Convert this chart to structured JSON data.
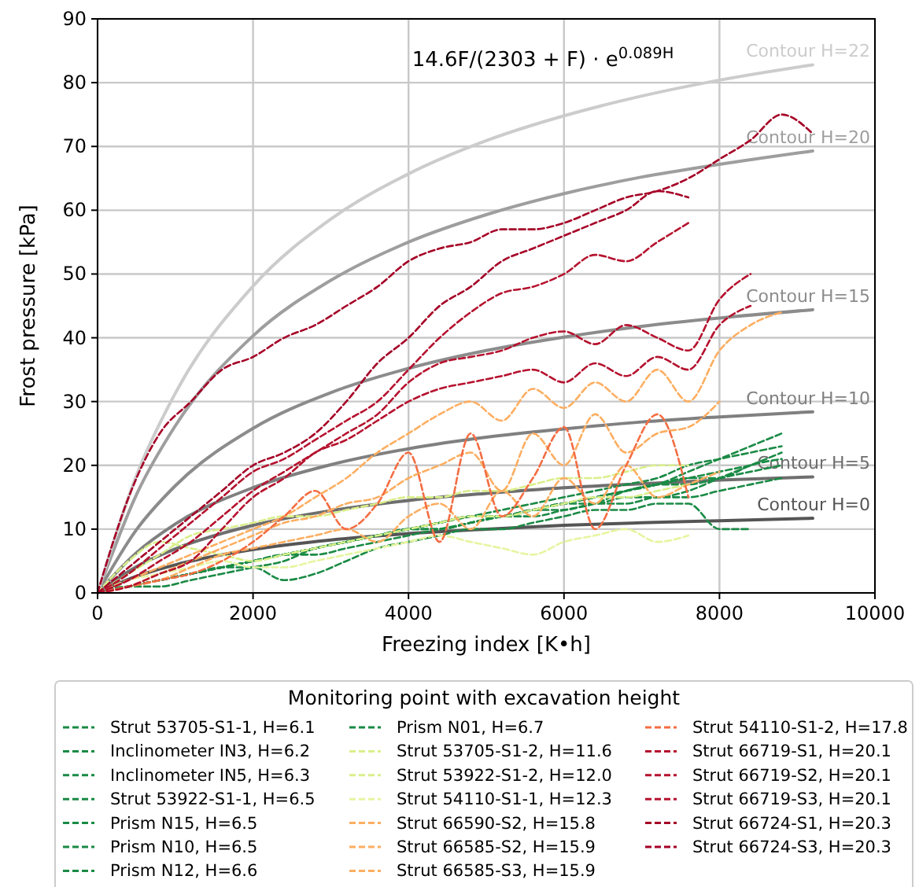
{
  "chart_data": {
    "type": "line",
    "xlabel": "Freezing index [K•h]",
    "ylabel": "Frost pressure [kPa]",
    "legend_title": "Monitoring point with excavation height",
    "legend": "bottom",
    "grid": true,
    "line_style": "dashed",
    "marker": "none",
    "annotations": [
      "14.6F/(2303 + F) · e$^{0.089H}$"
    ],
    "xlim": [
      0,
      10000
    ],
    "xticks": [
      0,
      2000,
      4000,
      6000,
      8000,
      10000
    ],
    "ylim": [
      0,
      90
    ],
    "yticks": [
      0,
      10,
      20,
      30,
      40,
      50,
      60,
      70,
      80,
      90
    ],
    "x": [
      0,
      400,
      800,
      1200,
      1600,
      2000,
      2400,
      2800,
      3200,
      3600,
      4000,
      4400,
      4800,
      5200,
      5600,
      6000,
      6400,
      6800,
      7200,
      7600,
      8000,
      8400,
      8800,
      9200
    ],
    "series": [
      {
        "name": "Strut 53705-S1-1, H=6.1",
        "color": "#1a8a45",
        "values": [
          0,
          1,
          2,
          3,
          4,
          5,
          6,
          7,
          8,
          9,
          10,
          11,
          12,
          12,
          13,
          14,
          15,
          16,
          17,
          18,
          18,
          20,
          21,
          null
        ]
      },
      {
        "name": "Inclinometer IN3, H=6.2",
        "color": "#1a8a45",
        "values": [
          0,
          1,
          2,
          3,
          4,
          5,
          6,
          7,
          8,
          9,
          10,
          10,
          11,
          12,
          13,
          14,
          15,
          16,
          17,
          19,
          21,
          23,
          25,
          null
        ]
      },
      {
        "name": "Inclinometer IN5, H=6.3",
        "color": "#1a8a45",
        "values": [
          0,
          1,
          2,
          3,
          4,
          5,
          6,
          6,
          7,
          8,
          9,
          10,
          11,
          12,
          12,
          13,
          14,
          16,
          17,
          18,
          19,
          20,
          null,
          null
        ]
      },
      {
        "name": "Strut 53922-S1-1, H=6.5",
        "color": "#1a8a45",
        "values": [
          0,
          1,
          1,
          2,
          3,
          4,
          5,
          7,
          8,
          9,
          10,
          11,
          12,
          13,
          14,
          15,
          16,
          17,
          18,
          20,
          21,
          22,
          23,
          null
        ]
      },
      {
        "name": "Prism N15, H=6.5",
        "color": "#1a8a45",
        "values": [
          0,
          1,
          2,
          3,
          4,
          5,
          6,
          7,
          8,
          9,
          10,
          11,
          12,
          12,
          13,
          14,
          14,
          15,
          15,
          16,
          18,
          20,
          22,
          null
        ]
      },
      {
        "name": "Prism N10, H=6.5",
        "color": "#1a8a45",
        "values": [
          0,
          1,
          2,
          3,
          4,
          4,
          2,
          3,
          5,
          7,
          8,
          9,
          10,
          10,
          11,
          12,
          13,
          13,
          14,
          14,
          10,
          10,
          null,
          null
        ]
      },
      {
        "name": "Prism N12, H=6.6",
        "color": "#1a8a45",
        "values": [
          0,
          1,
          2,
          3,
          4,
          5,
          6,
          7,
          8,
          9,
          10,
          11,
          12,
          12,
          13,
          13,
          14,
          14,
          15,
          15,
          16,
          17,
          18,
          null
        ]
      },
      {
        "name": "Prism N01, H=6.7",
        "color": "#1a8a45",
        "values": [
          0,
          1,
          2,
          3,
          4,
          5,
          6,
          7,
          8,
          9,
          10,
          10,
          11,
          12,
          13,
          14,
          15,
          16,
          17,
          17,
          18,
          19,
          20,
          null
        ]
      },
      {
        "name": "Strut 53705-S1-2, H=11.6",
        "color": "#d9ef8b",
        "values": [
          0,
          3,
          6,
          9,
          10,
          11,
          12,
          12,
          13,
          14,
          15,
          15,
          16,
          16,
          17,
          18,
          18,
          19,
          20,
          20,
          null,
          null,
          null,
          null
        ]
      },
      {
        "name": "Strut 53922-S1-2, H=12.0",
        "color": "#d9ef8b",
        "values": [
          0,
          5,
          8,
          7,
          6,
          5,
          6,
          7,
          8,
          9,
          10,
          11,
          12,
          12,
          13,
          14,
          15,
          15,
          16,
          17,
          null,
          null,
          null,
          null
        ]
      },
      {
        "name": "Strut 54110-S1-1, H=12.3",
        "color": "#e6f5a0",
        "values": [
          0,
          2,
          3,
          4,
          5,
          4,
          4,
          5,
          6,
          7,
          8,
          9,
          8,
          7,
          6,
          8,
          9,
          10,
          8,
          9,
          null,
          null,
          null,
          null
        ]
      },
      {
        "name": "Strut 66590-S2, H=15.8",
        "color": "#fdae61",
        "values": [
          0,
          2,
          4,
          6,
          8,
          10,
          12,
          15,
          18,
          22,
          25,
          28,
          30,
          27,
          32,
          29,
          33,
          30,
          35,
          30,
          38,
          42,
          44,
          null
        ]
      },
      {
        "name": "Strut 66585-S2, H=15.9",
        "color": "#fdae61",
        "values": [
          0,
          1,
          3,
          5,
          7,
          9,
          11,
          12,
          14,
          15,
          18,
          20,
          22,
          16,
          25,
          20,
          28,
          22,
          25,
          26,
          30,
          null,
          null,
          null
        ]
      },
      {
        "name": "Strut 66585-S3, H=15.9",
        "color": "#fdae61",
        "values": [
          0,
          1,
          2,
          4,
          6,
          7,
          8,
          9,
          10,
          8,
          12,
          14,
          10,
          16,
          12,
          18,
          14,
          20,
          15,
          17,
          19,
          null,
          null,
          null
        ]
      },
      {
        "name": "Strut 54110-S1-2, H=17.8",
        "color": "#f46d43",
        "values": [
          0,
          1,
          2,
          3,
          5,
          8,
          12,
          16,
          10,
          14,
          22,
          8,
          25,
          12,
          18,
          26,
          10,
          20,
          28,
          15,
          null,
          null,
          null,
          null
        ]
      },
      {
        "name": "Strut 66719-S1, H=20.1",
        "color": "#b5122e",
        "values": [
          0,
          1,
          3,
          5,
          10,
          15,
          18,
          22,
          24,
          27,
          30,
          32,
          33,
          34,
          35,
          33,
          36,
          34,
          37,
          35,
          42,
          45,
          null,
          null
        ]
      },
      {
        "name": "Strut 66719-S2, H=20.1",
        "color": "#b5122e",
        "values": [
          0,
          2,
          5,
          8,
          12,
          16,
          19,
          22,
          25,
          28,
          33,
          36,
          37,
          38,
          40,
          41,
          39,
          42,
          40,
          38,
          46,
          50,
          null,
          null
        ]
      },
      {
        "name": "Strut 66719-S3, H=20.1",
        "color": "#b5122e",
        "values": [
          0,
          3,
          7,
          11,
          15,
          19,
          21,
          24,
          27,
          30,
          35,
          40,
          44,
          47,
          48,
          50,
          53,
          52,
          55,
          58,
          null,
          null,
          null,
          null
        ]
      },
      {
        "name": "Strut 66724-S1, H=20.3",
        "color": "#a50026",
        "values": [
          0,
          4,
          8,
          12,
          16,
          20,
          22,
          25,
          30,
          36,
          40,
          45,
          48,
          52,
          54,
          56,
          58,
          60,
          63,
          62,
          null,
          null,
          null,
          null
        ]
      },
      {
        "name": "Strut 66724-S3, H=20.3",
        "color": "#a50026",
        "values": [
          0,
          15,
          25,
          30,
          35,
          37,
          40,
          42,
          45,
          48,
          52,
          54,
          55,
          57,
          57,
          58,
          60,
          62,
          63,
          65,
          68,
          71,
          75,
          72
        ]
      },
      {
        "name": "Contour H=0",
        "color": "#555555",
        "line_style": "solid",
        "x": [
          0,
          500,
          1000,
          2000,
          3000,
          4000,
          5000,
          6000,
          7000,
          8000,
          9200
        ],
        "values": [
          0,
          2.6,
          4.4,
          6.8,
          8.3,
          9.3,
          10.0,
          10.6,
          11.0,
          11.3,
          11.7
        ]
      },
      {
        "name": "Contour H=5",
        "color": "#6e6e6e",
        "line_style": "solid",
        "x": [
          0,
          500,
          1000,
          2000,
          3000,
          4000,
          5000,
          6000,
          7000,
          8000,
          9200
        ],
        "values": [
          0,
          4.1,
          6.9,
          10.6,
          12.9,
          14.5,
          15.6,
          16.5,
          17.1,
          17.7,
          18.2
        ]
      },
      {
        "name": "Contour H=10",
        "color": "#808080",
        "line_style": "solid",
        "x": [
          0,
          500,
          1000,
          2000,
          3000,
          4000,
          5000,
          6000,
          7000,
          8000,
          9200
        ],
        "values": [
          0,
          6.3,
          10.8,
          16.5,
          20.1,
          22.6,
          24.4,
          25.7,
          26.8,
          27.6,
          28.4
        ]
      },
      {
        "name": "Contour H=15",
        "color": "#8c8c8c",
        "line_style": "solid",
        "x": [
          0,
          500,
          1000,
          2000,
          3000,
          4000,
          5000,
          6000,
          7000,
          8000,
          9200
        ],
        "values": [
          0,
          9.9,
          16.8,
          25.8,
          31.4,
          35.2,
          38.0,
          40.1,
          41.8,
          43.1,
          44.4
        ]
      },
      {
        "name": "Contour H=20",
        "color": "#9e9e9e",
        "line_style": "solid",
        "x": [
          0,
          500,
          1000,
          2000,
          3000,
          4000,
          5000,
          6000,
          7000,
          8000,
          9200
        ],
        "values": [
          0,
          15.4,
          26.2,
          40.3,
          49.0,
          55.0,
          59.3,
          62.6,
          65.2,
          67.2,
          69.3
        ]
      },
      {
        "name": "Contour H=22",
        "color": "#cccccc",
        "line_style": "solid",
        "x": [
          0,
          500,
          1000,
          2000,
          3000,
          4000,
          5000,
          6000,
          7000,
          8000,
          9200
        ],
        "values": [
          0,
          18.4,
          31.3,
          48.1,
          58.6,
          65.7,
          70.9,
          74.8,
          77.9,
          80.4,
          82.8
        ]
      }
    ]
  }
}
